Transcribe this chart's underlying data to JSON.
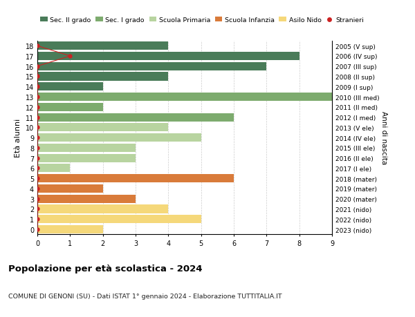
{
  "ages": [
    18,
    17,
    16,
    15,
    14,
    13,
    12,
    11,
    10,
    9,
    8,
    7,
    6,
    5,
    4,
    3,
    2,
    1,
    0
  ],
  "right_labels": [
    "2005 (V sup)",
    "2006 (IV sup)",
    "2007 (III sup)",
    "2008 (II sup)",
    "2009 (I sup)",
    "2010 (III med)",
    "2011 (II med)",
    "2012 (I med)",
    "2013 (V ele)",
    "2014 (IV ele)",
    "2015 (III ele)",
    "2016 (II ele)",
    "2017 (I ele)",
    "2018 (mater)",
    "2019 (mater)",
    "2020 (mater)",
    "2021 (nido)",
    "2022 (nido)",
    "2023 (nido)"
  ],
  "bar_values": [
    4,
    8,
    7,
    4,
    2,
    9,
    2,
    6,
    4,
    5,
    3,
    3,
    1,
    6,
    2,
    3,
    4,
    5,
    2
  ],
  "bar_colors": [
    "#4a7c59",
    "#4a7c59",
    "#4a7c59",
    "#4a7c59",
    "#4a7c59",
    "#7dab6e",
    "#7dab6e",
    "#7dab6e",
    "#b8d4a0",
    "#b8d4a0",
    "#b8d4a0",
    "#b8d4a0",
    "#b8d4a0",
    "#d97b3a",
    "#d97b3a",
    "#d97b3a",
    "#f5d87a",
    "#f5d87a",
    "#f5d87a"
  ],
  "stranieri_ages": [
    18,
    17,
    16,
    15,
    14,
    13,
    12,
    11,
    10,
    9,
    8,
    7,
    6,
    5,
    4,
    3,
    2,
    1,
    0
  ],
  "stranieri_values": [
    0,
    1,
    0,
    0,
    0,
    0,
    0,
    0,
    0,
    0,
    0,
    0,
    0,
    0,
    0,
    0,
    0,
    0,
    0
  ],
  "legend_labels": [
    "Sec. II grado",
    "Sec. I grado",
    "Scuola Primaria",
    "Scuola Infanzia",
    "Asilo Nido",
    "Stranieri"
  ],
  "legend_colors": [
    "#4a7c59",
    "#7dab6e",
    "#b8d4a0",
    "#d97b3a",
    "#f5d87a",
    "#cc2222"
  ],
  "title": "Popolazione per età scolastica - 2024",
  "subtitle": "COMUNE DI GENONI (SU) - Dati ISTAT 1° gennaio 2024 - Elaborazione TUTTITALIA.IT",
  "ylabel": "Età alunni",
  "right_ylabel": "Anni di nascita",
  "xlim": [
    0,
    9
  ],
  "xticks": [
    0,
    1,
    2,
    3,
    4,
    5,
    6,
    7,
    8,
    9
  ],
  "bar_height": 0.82,
  "background_color": "#ffffff",
  "grid_color": "#cccccc"
}
